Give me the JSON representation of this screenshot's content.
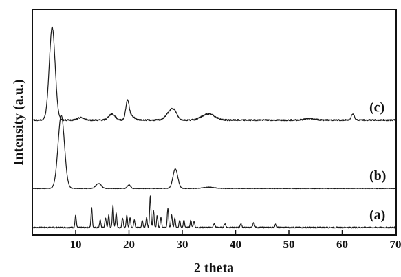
{
  "chart_data": {
    "type": "line",
    "xlabel": "2 theta",
    "ylabel": "Intensity (a.u.)",
    "xlim": [
      2,
      70
    ],
    "xticks": [
      10,
      20,
      30,
      40,
      50,
      60,
      70
    ],
    "yticks_shown": false,
    "grid": false,
    "legend": "none",
    "series": [
      {
        "name": "(a)",
        "baseline": 2,
        "noise": 0.25,
        "peaks": [
          {
            "x": 10.0,
            "h": 5,
            "w": 0.12
          },
          {
            "x": 13.0,
            "h": 8,
            "w": 0.12
          },
          {
            "x": 14.6,
            "h": 3,
            "w": 0.12
          },
          {
            "x": 15.6,
            "h": 4,
            "w": 0.12
          },
          {
            "x": 16.2,
            "h": 5,
            "w": 0.12
          },
          {
            "x": 17.0,
            "h": 9,
            "w": 0.12
          },
          {
            "x": 17.6,
            "h": 6,
            "w": 0.12
          },
          {
            "x": 18.8,
            "h": 4,
            "w": 0.12
          },
          {
            "x": 19.6,
            "h": 5,
            "w": 0.12
          },
          {
            "x": 20.2,
            "h": 4,
            "w": 0.12
          },
          {
            "x": 21.0,
            "h": 3,
            "w": 0.12
          },
          {
            "x": 22.5,
            "h": 3,
            "w": 0.12
          },
          {
            "x": 23.3,
            "h": 4,
            "w": 0.12
          },
          {
            "x": 24.0,
            "h": 13,
            "w": 0.12
          },
          {
            "x": 24.6,
            "h": 7,
            "w": 0.12
          },
          {
            "x": 25.3,
            "h": 5,
            "w": 0.12
          },
          {
            "x": 26.0,
            "h": 4,
            "w": 0.12
          },
          {
            "x": 27.3,
            "h": 8,
            "w": 0.12
          },
          {
            "x": 28.0,
            "h": 5,
            "w": 0.12
          },
          {
            "x": 28.6,
            "h": 4,
            "w": 0.12
          },
          {
            "x": 29.5,
            "h": 3,
            "w": 0.12
          },
          {
            "x": 30.3,
            "h": 3,
            "w": 0.12
          },
          {
            "x": 31.6,
            "h": 3,
            "w": 0.12
          },
          {
            "x": 32.2,
            "h": 2.5,
            "w": 0.12
          },
          {
            "x": 36.0,
            "h": 1.5,
            "w": 0.15
          },
          {
            "x": 38.0,
            "h": 1.5,
            "w": 0.15
          },
          {
            "x": 41.0,
            "h": 1.5,
            "w": 0.15
          },
          {
            "x": 43.4,
            "h": 2,
            "w": 0.15
          },
          {
            "x": 47.5,
            "h": 1.2,
            "w": 0.15
          }
        ]
      },
      {
        "name": "(b)",
        "baseline": 18,
        "noise": 0.12,
        "peaks": [
          {
            "x": 7.3,
            "h": 30,
            "w": 0.6
          },
          {
            "x": 14.3,
            "h": 2,
            "w": 0.5
          },
          {
            "x": 20.0,
            "h": 1.5,
            "w": 0.3
          },
          {
            "x": 28.7,
            "h": 8,
            "w": 0.45
          },
          {
            "x": 35.0,
            "h": 0.5,
            "w": 1.0
          }
        ]
      },
      {
        "name": "(c)",
        "baseline": 46,
        "noise": 0.3,
        "peaks": [
          {
            "x": 5.6,
            "h": 38,
            "w": 0.55
          },
          {
            "x": 11.0,
            "h": 1,
            "w": 0.6
          },
          {
            "x": 16.8,
            "h": 2.5,
            "w": 0.6
          },
          {
            "x": 19.7,
            "h": 7,
            "w": 0.3
          },
          {
            "x": 20.3,
            "h": 2,
            "w": 0.6
          },
          {
            "x": 27.8,
            "h": 3.5,
            "w": 0.8
          },
          {
            "x": 28.5,
            "h": 2,
            "w": 0.5
          },
          {
            "x": 34.9,
            "h": 2.5,
            "w": 1.2
          },
          {
            "x": 54.0,
            "h": 0.6,
            "w": 1.0
          },
          {
            "x": 62.0,
            "h": 2.5,
            "w": 0.3
          }
        ]
      }
    ]
  }
}
